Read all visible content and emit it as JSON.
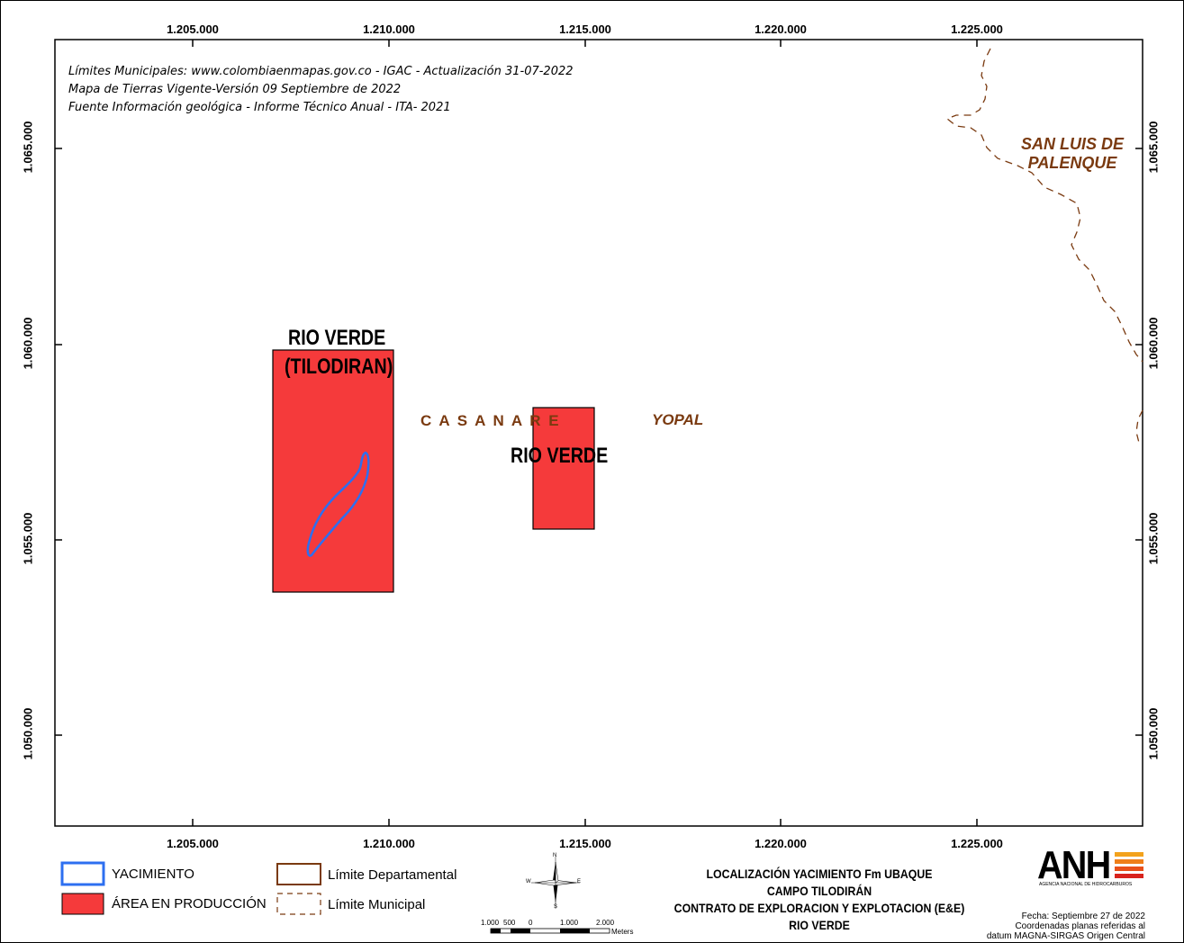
{
  "map": {
    "x_ticks": [
      "1.205.000",
      "1.210.000",
      "1.215.000",
      "1.220.000",
      "1.225.000"
    ],
    "y_ticks": [
      "1.065.000",
      "1.060.000",
      "1.055.000",
      "1.050.000"
    ],
    "notes": [
      "Límites Municipales: www.colombiaenmapas.gov.co - IGAC - Actualización 31-07-2022",
      "Mapa de Tierras Vigente-Versión 09 Septiembre de 2022",
      "Fuente Información geológica -  Informe Técnico Anual - ITA- 2021"
    ],
    "labels": {
      "block1_line1": "RIO VERDE",
      "block1_line2": "(TILODIRAN)",
      "block2": "RIO VERDE",
      "department": "C A S A N A R E",
      "municipality_yopal": "YOPAL",
      "municipality_slp_line1": "SAN LUIS DE",
      "municipality_slp_line2": "PALENQUE"
    },
    "colors": {
      "production_area": "#f53a3b",
      "yacimiento": "#2d6ff0",
      "boundary": "#7a3a10"
    }
  },
  "legend": {
    "yacimiento": "YACIMIENTO",
    "area_produccion": "ÁREA EN PRODUCCIÓN",
    "limite_departamental": "Límite Departamental",
    "limite_municipal": "Límite Municipal"
  },
  "scale_bar": {
    "labels": [
      "1.000",
      "500",
      "0",
      "1.000",
      "2.000"
    ],
    "unit": "Meters"
  },
  "north_arrow": {
    "n": "N",
    "s": "S",
    "e": "E",
    "w": "W"
  },
  "title_block": {
    "line1": "LOCALIZACIÓN YACIMIENTO Fm UBAQUE",
    "line2": "CAMPO TILODIRÁN",
    "line3": "CONTRATO DE EXPLORACION Y EXPLOTACION (E&E)",
    "line4": "RIO VERDE"
  },
  "date_block": {
    "line1": "Fecha: Septiembre 27 de 2022",
    "line2": "Coordenadas planas referidas al",
    "line3": "datum MAGNA-SIRGAS Origen Central"
  },
  "logo": {
    "text": "ANH",
    "subtitle": "AGENCIA NACIONAL DE HIDROCARBUROS"
  }
}
